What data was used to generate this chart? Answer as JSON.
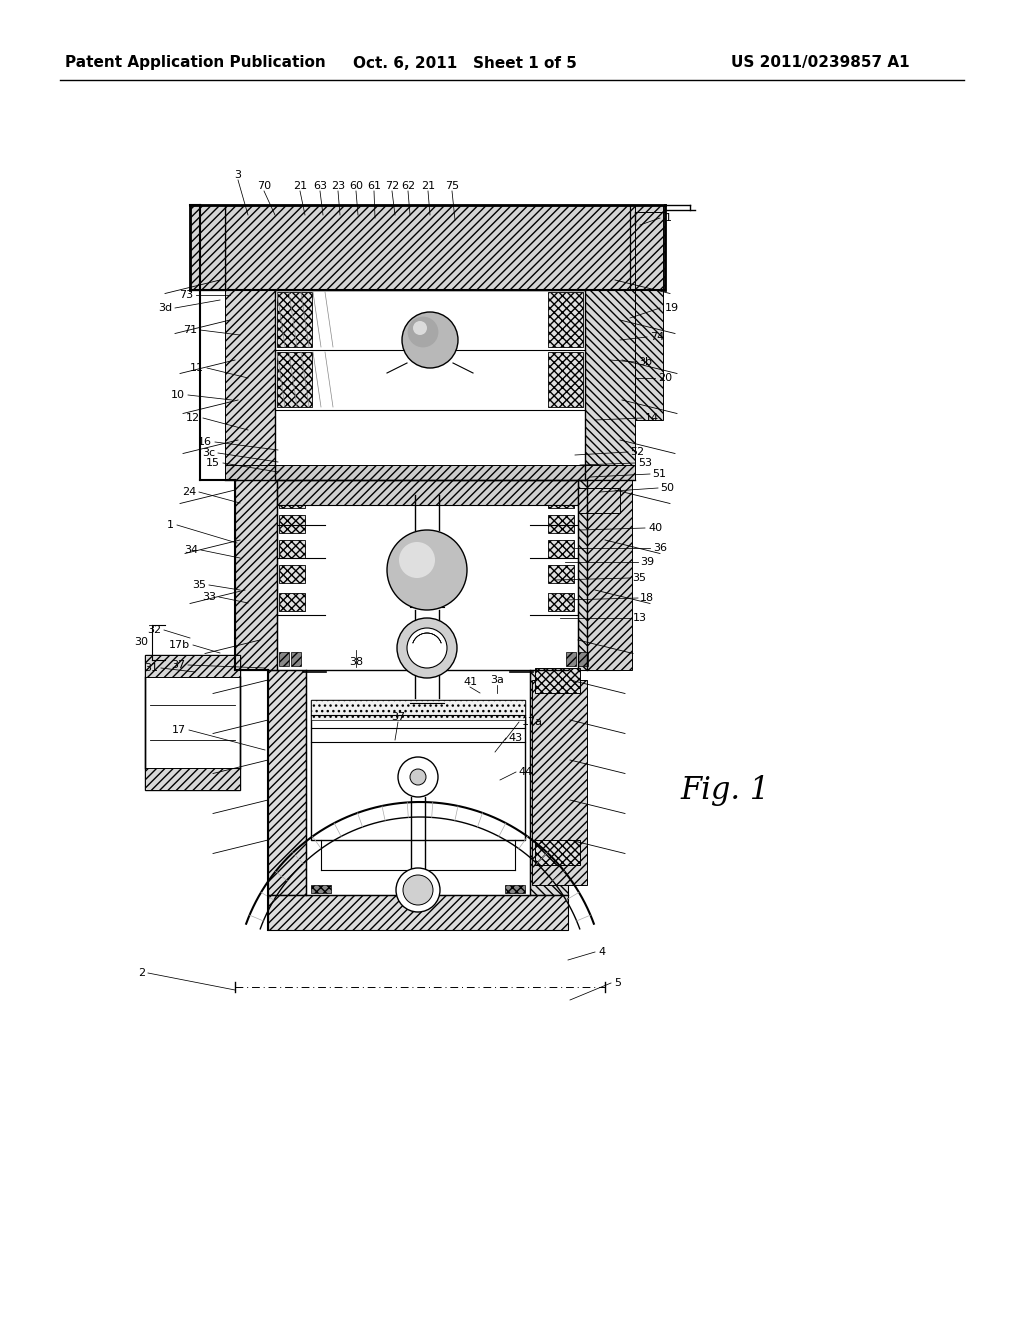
{
  "bg_color": "#ffffff",
  "header_left": "Patent Application Publication",
  "header_center": "Oct. 6, 2011   Sheet 1 of 5",
  "header_right": "US 2011/0239857 A1",
  "fig_label": "Fig. 1",
  "header_fontsize": 11,
  "fig_label_fontsize": 22,
  "line_color": "#000000",
  "hatch_color": "#000000",
  "fill_light": "#e8e8e8",
  "fill_mid": "#c8c8c8",
  "fill_dark": "#888888"
}
